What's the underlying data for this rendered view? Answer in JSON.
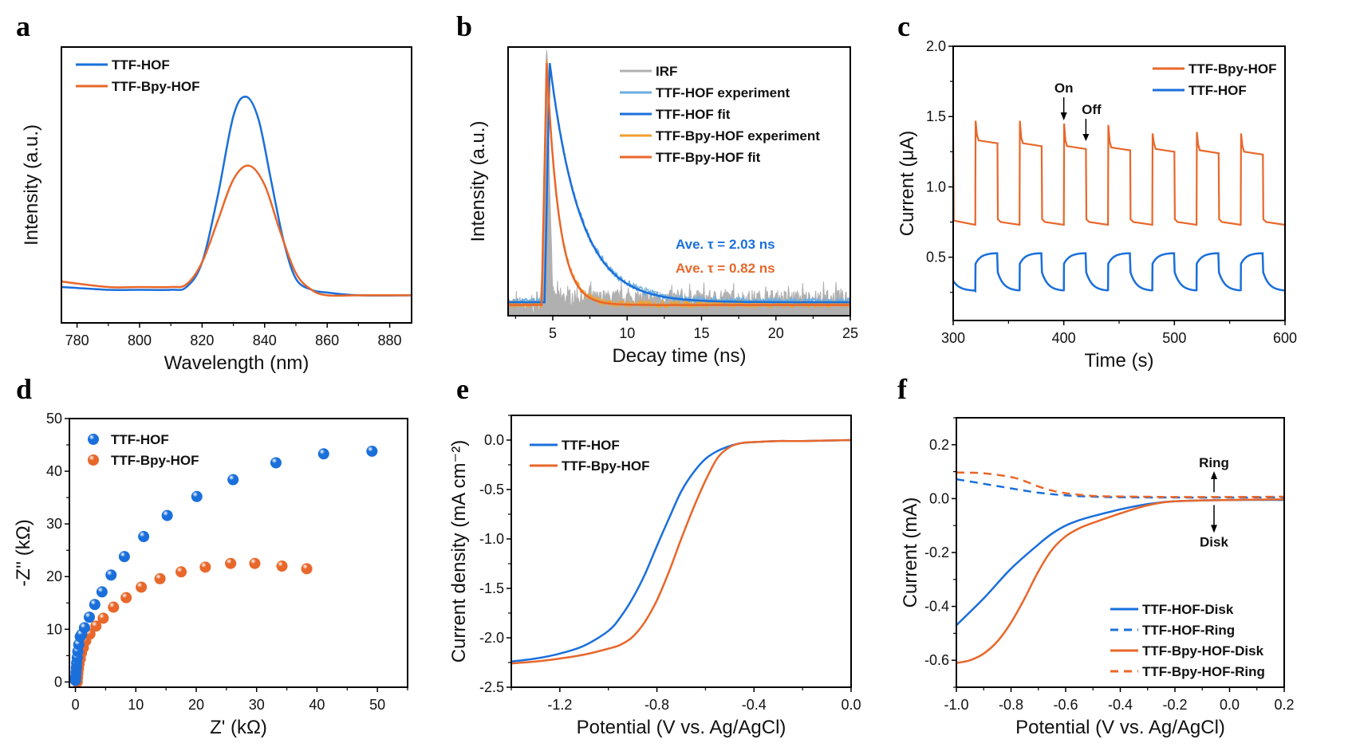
{
  "colors": {
    "blue": "#1a6fdb",
    "orange": "#e8672a",
    "light_blue": "#6aaee0",
    "light_orange": "#f0a030",
    "gray": "#b0b0b0"
  },
  "chart_data": [
    {
      "panel": "a",
      "type": "line",
      "xlabel": "Wavelength (nm)",
      "ylabel": "Intensity (a.u.)",
      "xlim": [
        775,
        887
      ],
      "ylim": [
        0,
        1
      ],
      "xticks": [
        780,
        800,
        820,
        840,
        860,
        880
      ],
      "yticks_shown": false,
      "legend": "top-left",
      "series": [
        {
          "name": "TTF-HOF",
          "color": "#1a6fdb",
          "x": [
            775,
            790,
            800,
            810,
            815,
            820,
            825,
            830,
            834,
            838,
            842,
            846,
            850,
            855,
            860,
            870,
            887
          ],
          "y": [
            0.13,
            0.12,
            0.12,
            0.12,
            0.13,
            0.22,
            0.46,
            0.75,
            0.82,
            0.74,
            0.52,
            0.3,
            0.16,
            0.12,
            0.11,
            0.1,
            0.1
          ]
        },
        {
          "name": "TTF-Bpy-HOF",
          "color": "#e8672a",
          "x": [
            775,
            790,
            800,
            810,
            815,
            820,
            825,
            830,
            835,
            840,
            845,
            850,
            855,
            860,
            870,
            887
          ],
          "y": [
            0.15,
            0.13,
            0.13,
            0.13,
            0.14,
            0.22,
            0.37,
            0.52,
            0.57,
            0.5,
            0.33,
            0.18,
            0.12,
            0.1,
            0.1,
            0.1
          ]
        }
      ]
    },
    {
      "panel": "b",
      "type": "line",
      "xlabel": "Decay time (ns)",
      "ylabel": "Intensity (a.u.)",
      "xlim": [
        2,
        25
      ],
      "ylim": [
        0,
        1
      ],
      "xticks": [
        5,
        10,
        15,
        20,
        25
      ],
      "yticks_shown": false,
      "legend": "top-right",
      "annotations": [
        {
          "text": "Ave. τ = 2.03 ns",
          "color": "#1a6fdb"
        },
        {
          "text": "Ave. τ = 0.82 ns",
          "color": "#e8672a"
        }
      ],
      "series": [
        {
          "name": "IRF",
          "color": "#b0b0b0",
          "peak_x": 4.6,
          "width_ns": 0.5,
          "baseline": 0.06
        },
        {
          "name": "TTF-HOF experiment",
          "color": "#6aaee0",
          "peak_x": 4.8,
          "tau_ns": 2.03,
          "baseline": 0.05
        },
        {
          "name": "TTF-HOF fit",
          "color": "#1a6fdb",
          "peak_x": 4.8,
          "tau_ns": 2.03,
          "baseline": 0.05
        },
        {
          "name": "TTF-Bpy-HOF experiment",
          "color": "#f0a030",
          "peak_x": 4.6,
          "tau_ns": 0.82,
          "baseline": 0.04
        },
        {
          "name": "TTF-Bpy-HOF fit",
          "color": "#e8672a",
          "peak_x": 4.6,
          "tau_ns": 0.82,
          "baseline": 0.04
        }
      ]
    },
    {
      "panel": "c",
      "type": "line",
      "xlabel": "Time (s)",
      "ylabel": "Current (μA)",
      "xlim": [
        300,
        600
      ],
      "ylim": [
        0.05,
        2.0
      ],
      "xticks": [
        300,
        400,
        500,
        600
      ],
      "yticks": [
        0.5,
        1.0,
        1.5,
        2.0
      ],
      "legend": "top-right",
      "annotations": [
        {
          "text": "On",
          "x": 400
        },
        {
          "text": "Off",
          "x": 420
        }
      ],
      "cycle": {
        "period_s": 40,
        "on_duration_s": 20,
        "first_on_s": 320,
        "cycles": 7
      },
      "series": [
        {
          "name": "TTF-Bpy-HOF",
          "color": "#e8672a",
          "off_level": 0.74,
          "spikes": [
            1.47,
            1.47,
            1.45,
            1.44,
            1.38,
            1.39,
            1.38
          ],
          "plateaus": [
            1.32,
            1.3,
            1.28,
            1.27,
            1.26,
            1.25,
            1.24
          ]
        },
        {
          "name": "TTF-HOF",
          "color": "#1a6fdb",
          "off_min": 0.26,
          "on_start": 0.45,
          "on_max": 0.53
        }
      ]
    },
    {
      "panel": "d",
      "type": "scatter",
      "xlabel": "Z' (kΩ)",
      "ylabel": "-Z'' (kΩ)",
      "xlim": [
        -1,
        55
      ],
      "ylim": [
        -1,
        50
      ],
      "xticks": [
        0,
        10,
        20,
        30,
        40,
        50
      ],
      "yticks": [
        0,
        10,
        20,
        30,
        40,
        50
      ],
      "legend": "top-left",
      "series": [
        {
          "name": "TTF-HOF",
          "color": "#1a6fdb",
          "x": [
            0.0,
            0.05,
            0.1,
            0.15,
            0.2,
            0.3,
            0.4,
            0.55,
            0.8,
            1.0,
            1.5,
            2.3,
            3.2,
            4.4,
            5.9,
            8.1,
            11.3,
            15.2,
            20.1,
            26.1,
            33.2,
            41.1,
            49.1
          ],
          "y": [
            0.3,
            1.0,
            1.8,
            2.7,
            3.6,
            4.6,
            5.8,
            7.1,
            8.6,
            9.0,
            10.3,
            12.3,
            14.7,
            17.1,
            20.3,
            23.8,
            27.6,
            31.6,
            35.2,
            38.4,
            41.6,
            43.3,
            43.8
          ]
        },
        {
          "name": "TTF-Bpy-HOF",
          "color": "#e8672a",
          "x": [
            0.3,
            0.35,
            0.4,
            0.5,
            0.6,
            0.8,
            1.0,
            1.3,
            1.7,
            2.4,
            3.4,
            4.6,
            6.3,
            8.4,
            10.9,
            14.0,
            17.5,
            21.5,
            25.7,
            29.7,
            34.2,
            38.3
          ],
          "y": [
            0.0,
            0.8,
            1.6,
            2.5,
            3.4,
            4.4,
            5.5,
            6.5,
            7.8,
            9.1,
            10.6,
            12.1,
            14.2,
            16.0,
            18.0,
            19.6,
            20.9,
            21.8,
            22.5,
            22.5,
            22.0,
            21.5
          ]
        }
      ]
    },
    {
      "panel": "e",
      "type": "line",
      "xlabel": "Potential (V vs. Ag/AgCl)",
      "ylabel": "Current density (mA cm⁻²)",
      "xlim": [
        -1.4,
        0.0
      ],
      "ylim": [
        -2.5,
        0.25
      ],
      "xticks": [
        -1.2,
        -0.8,
        -0.4,
        0.0
      ],
      "yticks": [
        -2.5,
        -2.0,
        -1.5,
        -1.0,
        -0.5,
        0.0
      ],
      "legend": "top-left",
      "series": [
        {
          "name": "TTF-HOF",
          "color": "#1a6fdb",
          "x": [
            -1.4,
            -1.3,
            -1.2,
            -1.1,
            -1.0,
            -0.95,
            -0.9,
            -0.85,
            -0.8,
            -0.75,
            -0.7,
            -0.65,
            -0.6,
            -0.55,
            -0.5,
            -0.45,
            -0.4,
            -0.3,
            -0.2,
            0.0
          ],
          "y": [
            -2.24,
            -2.21,
            -2.16,
            -2.08,
            -1.93,
            -1.79,
            -1.6,
            -1.36,
            -1.07,
            -0.79,
            -0.52,
            -0.33,
            -0.19,
            -0.11,
            -0.06,
            -0.03,
            -0.02,
            -0.01,
            -0.01,
            0.0
          ]
        },
        {
          "name": "TTF-Bpy-HOF",
          "color": "#e8672a",
          "x": [
            -1.4,
            -1.3,
            -1.2,
            -1.1,
            -1.0,
            -0.95,
            -0.9,
            -0.85,
            -0.8,
            -0.75,
            -0.7,
            -0.65,
            -0.6,
            -0.55,
            -0.5,
            -0.45,
            -0.4,
            -0.3,
            -0.2,
            0.0
          ],
          "y": [
            -2.26,
            -2.24,
            -2.21,
            -2.17,
            -2.11,
            -2.07,
            -1.99,
            -1.84,
            -1.62,
            -1.33,
            -1.0,
            -0.69,
            -0.41,
            -0.18,
            -0.07,
            -0.03,
            -0.02,
            -0.01,
            -0.01,
            0.0
          ]
        }
      ]
    },
    {
      "panel": "f",
      "type": "line",
      "xlabel": "Potential (V vs. Ag/AgCl)",
      "ylabel": "Current (mA)",
      "xlim": [
        -1.0,
        0.2
      ],
      "ylim": [
        -0.7,
        0.3
      ],
      "xticks": [
        -1.0,
        -0.8,
        -0.6,
        -0.4,
        -0.2,
        0.0,
        0.2
      ],
      "yticks": [
        -0.6,
        -0.4,
        -0.2,
        0.0,
        0.2
      ],
      "legend": "bottom-right",
      "annotations": [
        {
          "text": "Ring",
          "direction": "up"
        },
        {
          "text": "Disk",
          "direction": "down"
        }
      ],
      "series": [
        {
          "name": "TTF-HOF-Disk",
          "color": "#1a6fdb",
          "dash": false,
          "x": [
            -1.0,
            -0.9,
            -0.8,
            -0.7,
            -0.65,
            -0.6,
            -0.55,
            -0.5,
            -0.4,
            -0.3,
            -0.2,
            0.0,
            0.2
          ],
          "y": [
            -0.47,
            -0.37,
            -0.26,
            -0.17,
            -0.13,
            -0.1,
            -0.08,
            -0.065,
            -0.04,
            -0.02,
            -0.01,
            -0.005,
            -0.005
          ]
        },
        {
          "name": "TTF-HOF-Ring",
          "color": "#1a6fdb",
          "dash": true,
          "x": [
            -1.0,
            -0.9,
            -0.8,
            -0.7,
            -0.6,
            -0.5,
            -0.4,
            -0.2,
            0.0,
            0.2
          ],
          "y": [
            0.072,
            0.055,
            0.038,
            0.022,
            0.012,
            0.007,
            0.005,
            0.004,
            0.004,
            0.005
          ]
        },
        {
          "name": "TTF-Bpy-HOF-Disk",
          "color": "#e8672a",
          "dash": false,
          "x": [
            -1.0,
            -0.95,
            -0.9,
            -0.85,
            -0.8,
            -0.75,
            -0.7,
            -0.65,
            -0.6,
            -0.55,
            -0.5,
            -0.4,
            -0.3,
            -0.2,
            0.0,
            0.2
          ],
          "y": [
            -0.61,
            -0.6,
            -0.575,
            -0.53,
            -0.46,
            -0.37,
            -0.27,
            -0.19,
            -0.14,
            -0.11,
            -0.09,
            -0.055,
            -0.025,
            -0.01,
            -0.005,
            -0.003
          ]
        },
        {
          "name": "TTF-Bpy-HOF-Ring",
          "color": "#e8672a",
          "dash": true,
          "x": [
            -1.0,
            -0.9,
            -0.8,
            -0.75,
            -0.7,
            -0.65,
            -0.6,
            -0.5,
            -0.4,
            -0.2,
            0.0,
            0.2
          ],
          "y": [
            0.097,
            0.094,
            0.08,
            0.065,
            0.045,
            0.03,
            0.02,
            0.01,
            0.008,
            0.006,
            0.006,
            0.007
          ]
        }
      ]
    }
  ]
}
